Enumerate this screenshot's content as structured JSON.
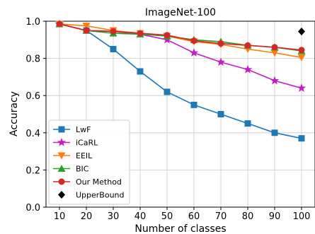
{
  "chart_data": {
    "type": "line",
    "title": "ImageNet-100",
    "xlabel": "Number of classes",
    "ylabel": "Accuracy",
    "x": [
      10,
      20,
      30,
      40,
      50,
      60,
      70,
      80,
      90,
      100
    ],
    "x_tick_labels": [
      "10",
      "20",
      "30",
      "40",
      "50",
      "60",
      "70",
      "80",
      "90",
      "100"
    ],
    "y_tick_labels": [
      "0.0",
      "0.2",
      "0.4",
      "0.6",
      "0.8",
      "1.0"
    ],
    "ylim": [
      0,
      1.0
    ],
    "xlim": [
      5,
      105
    ],
    "grid": true,
    "legend_position": "lower-left",
    "series": [
      {
        "name": "LwF",
        "color": "#1f77b4",
        "marker": "square",
        "values": [
          0.985,
          0.95,
          0.85,
          0.73,
          0.62,
          0.55,
          0.5,
          0.45,
          0.4,
          0.37
        ]
      },
      {
        "name": "iCaRL",
        "color": "#c21ec2",
        "marker": "star",
        "values": [
          0.985,
          0.95,
          0.945,
          0.93,
          0.9,
          0.83,
          0.78,
          0.74,
          0.68,
          0.64
        ]
      },
      {
        "name": "EEIL",
        "color": "#ff7f0e",
        "marker": "triangle-down",
        "values": [
          0.985,
          0.975,
          0.95,
          0.935,
          0.92,
          0.89,
          0.875,
          0.85,
          0.83,
          0.805
        ]
      },
      {
        "name": "BIC",
        "color": "#2ca02c",
        "marker": "triangle-up",
        "values": [
          0.985,
          0.95,
          0.935,
          0.93,
          0.92,
          0.9,
          0.89,
          0.87,
          0.86,
          0.84
        ]
      },
      {
        "name": "Our Method",
        "color": "#d62728",
        "marker": "circle",
        "values": [
          0.985,
          0.95,
          0.945,
          0.935,
          0.925,
          0.895,
          0.88,
          0.87,
          0.86,
          0.845
        ]
      }
    ],
    "upper_bound": {
      "name": "UpperBound",
      "color": "#000000",
      "marker": "diamond",
      "x": 100,
      "y": 0.945
    }
  }
}
